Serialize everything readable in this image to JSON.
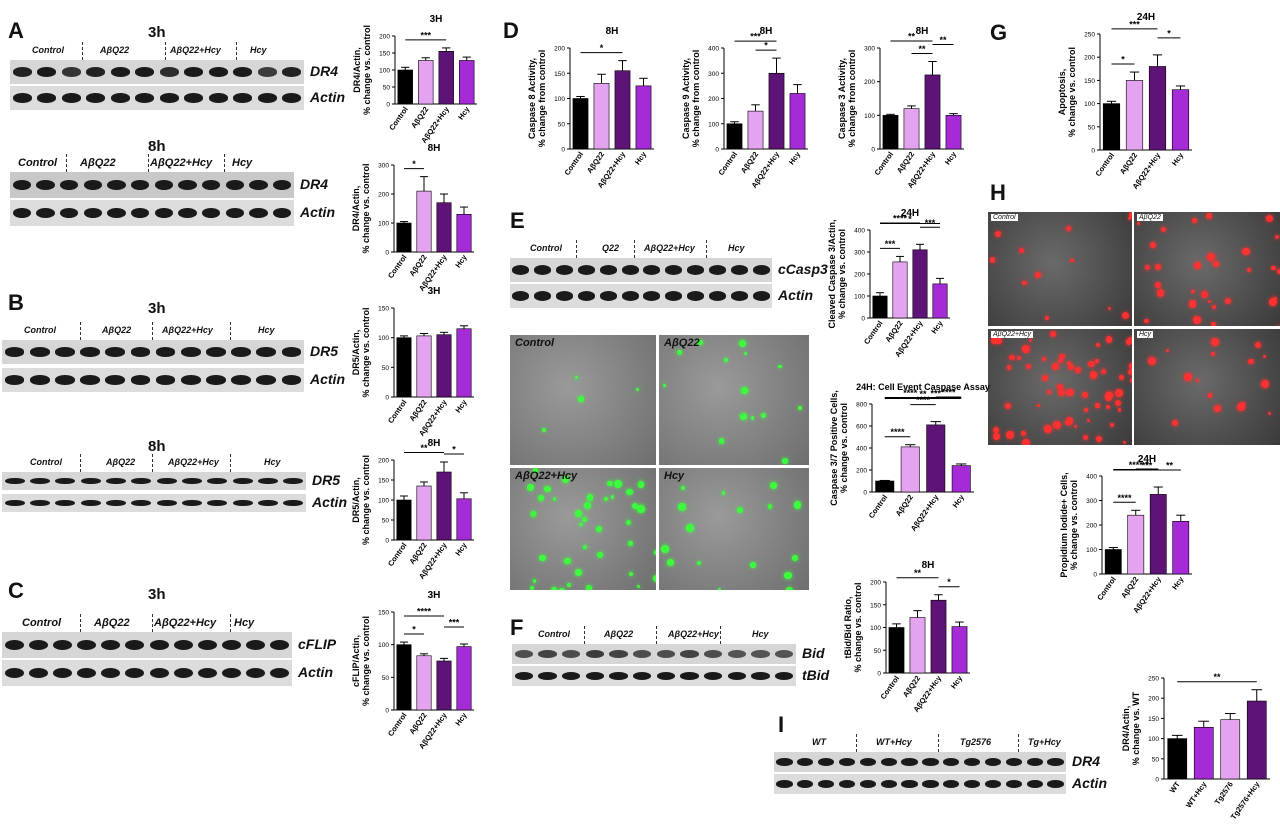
{
  "panels": {
    "A": "A",
    "B": "B",
    "C": "C",
    "D": "D",
    "E": "E",
    "F": "F",
    "G": "G",
    "H": "H",
    "I": "I"
  },
  "time_labels": {
    "A1": "3h",
    "A2": "8h",
    "B1": "3h",
    "B2": "8h",
    "C1": "3h"
  },
  "colors": {
    "black": "#000000",
    "light": "#e8a8f0",
    "dark": "#6a1a80",
    "med": "#a827d6"
  },
  "blots": {
    "A1": {
      "groups": [
        "Control",
        "AβQ22",
        "AβQ22+Hcy",
        "Hcy"
      ],
      "proteins": [
        "DR4",
        "Actin"
      ]
    },
    "A2": {
      "groups": [
        "Control",
        "AβQ22",
        "AβQ22+Hcy",
        "Hcy"
      ],
      "proteins": [
        "DR4",
        "Actin"
      ]
    },
    "B1": {
      "groups": [
        "Control",
        "AβQ22",
        "AβQ22+Hcy",
        "Hcy"
      ],
      "proteins": [
        "DR5",
        "Actin"
      ]
    },
    "B2": {
      "groups": [
        "Control",
        "AβQ22",
        "AβQ22+Hcy",
        "Hcy"
      ],
      "proteins": [
        "DR5",
        "Actin"
      ]
    },
    "C1": {
      "groups": [
        "Control",
        "AβQ22",
        "AβQ22+Hcy",
        "Hcy"
      ],
      "proteins": [
        "cFLIP",
        "Actin"
      ]
    },
    "E1": {
      "groups": [
        "Control",
        "Q22",
        "AβQ22+Hcy",
        "Hcy"
      ],
      "proteins": [
        "cCasp3",
        "Actin"
      ]
    },
    "F1": {
      "groups": [
        "Control",
        "AβQ22",
        "AβQ22+Hcy",
        "Hcy"
      ],
      "proteins": [
        "Bid",
        "tBid"
      ]
    },
    "I1": {
      "groups": [
        "WT",
        "WT+Hcy",
        "Tg2576",
        "Tg+Hcy"
      ],
      "proteins": [
        "DR4",
        "Actin"
      ]
    }
  },
  "micrographs": {
    "E": [
      "Control",
      "AβQ22",
      "AβQ22+Hcy",
      "Hcy"
    ],
    "H": [
      "Control",
      "AβQ22",
      "AβQ22+Hcy",
      "Hcy"
    ]
  },
  "chart_data": [
    {
      "id": "A1",
      "type": "bar",
      "title": "3H",
      "ylabel": "DR4/Actin,\n% change vs. control",
      "ylim": [
        0,
        200
      ],
      "yticks": [
        0,
        50,
        100,
        150,
        200
      ],
      "categories": [
        "Control",
        "AβQ22",
        "AβQ22+Hcy",
        "Hcy"
      ],
      "values": [
        100,
        128,
        155,
        128
      ],
      "errors": [
        8,
        8,
        10,
        10
      ],
      "sig": [
        {
          "a": 0,
          "b": 2,
          "label": "***"
        }
      ]
    },
    {
      "id": "A2",
      "type": "bar",
      "title": "8H",
      "ylabel": "DR4/Actin,\n% change vs. control",
      "ylim": [
        0,
        300
      ],
      "yticks": [
        0,
        100,
        200,
        300
      ],
      "categories": [
        "Control",
        "AβQ22",
        "AβQ22+Hcy",
        "Hcy"
      ],
      "values": [
        100,
        210,
        170,
        130
      ],
      "errors": [
        5,
        50,
        30,
        25
      ],
      "sig": [
        {
          "a": 0,
          "b": 1,
          "label": "*"
        }
      ]
    },
    {
      "id": "B1",
      "type": "bar",
      "title": "3H",
      "ylabel": "DR5/Actin,\n% change vs. control",
      "ylim": [
        0,
        150
      ],
      "yticks": [
        0,
        50,
        100,
        150
      ],
      "categories": [
        "Control",
        "AβQ22",
        "AβQ22+Hcy",
        "Hcy"
      ],
      "values": [
        100,
        103,
        105,
        115
      ],
      "errors": [
        3,
        4,
        4,
        5
      ],
      "sig": []
    },
    {
      "id": "B2",
      "type": "bar",
      "title": "8H",
      "ylabel": "DR5/Actin,\n% change vs. control",
      "ylim": [
        0,
        200
      ],
      "yticks": [
        0,
        50,
        100,
        150,
        200
      ],
      "categories": [
        "Control",
        "AβQ22",
        "AβQ22+Hcy",
        "Hcy"
      ],
      "values": [
        100,
        135,
        170,
        103
      ],
      "errors": [
        10,
        10,
        25,
        15
      ],
      "sig": [
        {
          "a": 0,
          "b": 2,
          "label": "**"
        },
        {
          "a": 2,
          "b": 3,
          "label": "*"
        }
      ]
    },
    {
      "id": "C1",
      "type": "bar",
      "title": "3H",
      "ylabel": "cFLIP/Actin,\n% change vs. control",
      "ylim": [
        0,
        150
      ],
      "yticks": [
        0,
        50,
        100,
        150
      ],
      "categories": [
        "Control",
        "AβQ22",
        "AβQ22+Hcy",
        "Hcy"
      ],
      "values": [
        100,
        83,
        75,
        97
      ],
      "errors": [
        4,
        3,
        4,
        4
      ],
      "sig": [
        {
          "a": 0,
          "b": 1,
          "label": "*"
        },
        {
          "a": 0,
          "b": 2,
          "label": "****"
        },
        {
          "a": 2,
          "b": 3,
          "label": "***"
        }
      ]
    },
    {
      "id": "D1",
      "type": "bar",
      "title": "8H",
      "ylabel": "Caspase 8 Activity,\n% change from control",
      "ylim": [
        0,
        200
      ],
      "yticks": [
        0,
        50,
        100,
        150,
        200
      ],
      "categories": [
        "Control",
        "AβQ22",
        "AβQ22+Hcy",
        "Hcy"
      ],
      "values": [
        100,
        130,
        155,
        125
      ],
      "errors": [
        4,
        18,
        20,
        15
      ],
      "sig": [
        {
          "a": 0,
          "b": 2,
          "label": "*"
        }
      ]
    },
    {
      "id": "D2",
      "type": "bar",
      "title": "8H",
      "ylabel": "Caspase 9 Activity,\n% change from control",
      "ylim": [
        0,
        400
      ],
      "yticks": [
        0,
        100,
        200,
        300,
        400
      ],
      "categories": [
        "Control",
        "AβQ22",
        "AβQ22+Hcy",
        "Hcy"
      ],
      "values": [
        100,
        150,
        300,
        220
      ],
      "errors": [
        8,
        25,
        60,
        35
      ],
      "sig": [
        {
          "a": 0,
          "b": 2,
          "label": "***"
        },
        {
          "a": 1,
          "b": 2,
          "label": "*"
        }
      ]
    },
    {
      "id": "D3",
      "type": "bar",
      "title": "8H",
      "ylabel": "Caspase 3 Activity,\n% change from control",
      "ylim": [
        0,
        300
      ],
      "yticks": [
        0,
        100,
        200,
        300
      ],
      "categories": [
        "Control",
        "AβQ22",
        "AβQ22+Hcy",
        "Hcy"
      ],
      "values": [
        100,
        120,
        220,
        100
      ],
      "errors": [
        3,
        8,
        40,
        5
      ],
      "sig": [
        {
          "a": 0,
          "b": 2,
          "label": "**"
        },
        {
          "a": 1,
          "b": 2,
          "label": "**"
        },
        {
          "a": 2,
          "b": 3,
          "label": "**"
        }
      ]
    },
    {
      "id": "G1",
      "type": "bar",
      "title": "24H",
      "ylabel": "Apoptosis,\n% change vs. control",
      "ylim": [
        0,
        250
      ],
      "yticks": [
        0,
        50,
        100,
        150,
        200,
        250
      ],
      "categories": [
        "Control",
        "AβQ22",
        "AβQ22+Hcy",
        "Hcy"
      ],
      "values": [
        100,
        150,
        180,
        130
      ],
      "errors": [
        5,
        18,
        25,
        8
      ],
      "sig": [
        {
          "a": 0,
          "b": 1,
          "label": "*"
        },
        {
          "a": 0,
          "b": 2,
          "label": "***"
        },
        {
          "a": 2,
          "b": 3,
          "label": "*"
        }
      ]
    },
    {
      "id": "E1",
      "type": "bar",
      "title": "24H",
      "ylabel": "Cleaved Caspase 3/Actin,\n% change vs. control",
      "ylim": [
        0,
        400
      ],
      "yticks": [
        0,
        100,
        200,
        300,
        400
      ],
      "categories": [
        "Control",
        "AβQ22",
        "AβQ22+Hcy",
        "Hcy"
      ],
      "values": [
        100,
        255,
        310,
        155
      ],
      "errors": [
        15,
        25,
        25,
        25
      ],
      "sig": [
        {
          "a": 0,
          "b": 1,
          "label": "***"
        },
        {
          "a": 0,
          "b": 2,
          "label": "****"
        },
        {
          "a": 0,
          "b": 3,
          "label": "*"
        },
        {
          "a": 2,
          "b": 3,
          "label": "***"
        }
      ]
    },
    {
      "id": "E2",
      "type": "bar",
      "title": "24H: Cell Event Caspase Assay",
      "ylabel": "Caspase 3/7 Positive Cells,\n% change vs. control",
      "ylim": [
        0,
        800
      ],
      "yticks": [
        0,
        200,
        400,
        600,
        800
      ],
      "categories": [
        "Control",
        "AβQ22",
        "AβQ22+Hcy",
        "Hcy"
      ],
      "values": [
        100,
        410,
        610,
        240
      ],
      "errors": [
        5,
        20,
        30,
        15
      ],
      "sig": [
        {
          "a": 0,
          "b": 1,
          "label": "****"
        },
        {
          "a": 1,
          "b": 2,
          "label": "****"
        },
        {
          "a": 2,
          "b": 3,
          "label": "****"
        },
        {
          "a": 0,
          "b": 2,
          "label": "****"
        },
        {
          "a": 1,
          "b": 3,
          "label": "***"
        },
        {
          "a": 0,
          "b": 3,
          "label": "**"
        }
      ]
    },
    {
      "id": "F1",
      "type": "bar",
      "title": "8H",
      "ylabel": "tBid/Bid Ratio,\n% change vs. control",
      "ylim": [
        0,
        200
      ],
      "yticks": [
        0,
        50,
        100,
        150,
        200
      ],
      "categories": [
        "Control",
        "AβQ22",
        "AβQ22+Hcy",
        "Hcy"
      ],
      "values": [
        100,
        122,
        160,
        102
      ],
      "errors": [
        8,
        15,
        12,
        10
      ],
      "sig": [
        {
          "a": 0,
          "b": 2,
          "label": "**"
        },
        {
          "a": 2,
          "b": 3,
          "label": "*"
        }
      ]
    },
    {
      "id": "H1",
      "type": "bar",
      "title": "24H",
      "ylabel": "Propidium Iodide+ Cells,\n% change vs. control",
      "ylim": [
        0,
        400
      ],
      "yticks": [
        0,
        100,
        200,
        300,
        400
      ],
      "categories": [
        "Control",
        "AβQ22",
        "AβQ22+Hcy",
        "Hcy"
      ],
      "values": [
        100,
        240,
        325,
        215
      ],
      "errors": [
        8,
        20,
        30,
        25
      ],
      "sig": [
        {
          "a": 0,
          "b": 1,
          "label": "****"
        },
        {
          "a": 2,
          "b": 3,
          "label": "**"
        },
        {
          "a": 1,
          "b": 2,
          "label": "*"
        },
        {
          "a": 0,
          "b": 2,
          "label": "****"
        },
        {
          "a": 0,
          "b": 3,
          "label": "***"
        }
      ]
    },
    {
      "id": "I1",
      "type": "bar",
      "title": "",
      "ylabel": "DR4/Actin,\n% change vs. WT",
      "ylim": [
        0,
        250
      ],
      "yticks": [
        0,
        50,
        100,
        150,
        200,
        250
      ],
      "categories": [
        "WT",
        "WT+Hcy",
        "Tg2576",
        "Tg2576+Hcy"
      ],
      "values": [
        100,
        128,
        147,
        193
      ],
      "errors": [
        8,
        15,
        15,
        28
      ],
      "sig": [
        {
          "a": 0,
          "b": 3,
          "label": "**"
        }
      ]
    }
  ]
}
